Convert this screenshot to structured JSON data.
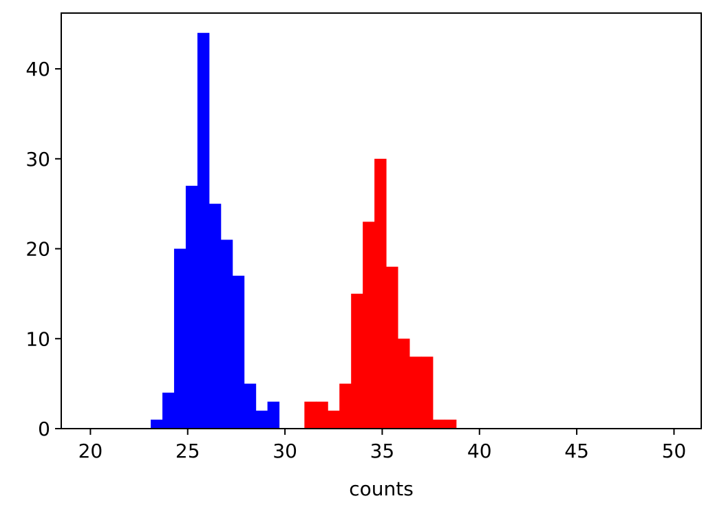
{
  "chart_data": {
    "type": "bar",
    "subtype": "histogram",
    "title": "",
    "xlabel": "counts",
    "ylabel": "",
    "xlim": [
      18.5,
      51.4
    ],
    "ylim": [
      0,
      46.2
    ],
    "xticks": [
      20,
      25,
      30,
      35,
      40,
      45,
      50
    ],
    "yticks": [
      0,
      10,
      20,
      30,
      40
    ],
    "grid": false,
    "legend": "none",
    "series": [
      {
        "color": "#0000ff",
        "bins": [
          {
            "x0": 23.1,
            "x1": 23.7,
            "value": 1
          },
          {
            "x0": 23.7,
            "x1": 24.3,
            "value": 4
          },
          {
            "x0": 24.3,
            "x1": 24.9,
            "value": 20
          },
          {
            "x0": 24.9,
            "x1": 25.5,
            "value": 27
          },
          {
            "x0": 25.5,
            "x1": 26.1,
            "value": 44
          },
          {
            "x0": 26.1,
            "x1": 26.7,
            "value": 25
          },
          {
            "x0": 26.7,
            "x1": 27.3,
            "value": 21
          },
          {
            "x0": 27.3,
            "x1": 27.9,
            "value": 17
          },
          {
            "x0": 27.9,
            "x1": 28.5,
            "value": 5
          },
          {
            "x0": 28.5,
            "x1": 29.1,
            "value": 2
          },
          {
            "x0": 29.1,
            "x1": 29.7,
            "value": 3
          }
        ]
      },
      {
        "color": "#ff0000",
        "bins": [
          {
            "x0": 31.0,
            "x1": 31.6,
            "value": 3
          },
          {
            "x0": 31.6,
            "x1": 32.2,
            "value": 3
          },
          {
            "x0": 32.2,
            "x1": 32.8,
            "value": 2
          },
          {
            "x0": 32.8,
            "x1": 33.4,
            "value": 5
          },
          {
            "x0": 33.4,
            "x1": 34.0,
            "value": 15
          },
          {
            "x0": 34.0,
            "x1": 34.6,
            "value": 23
          },
          {
            "x0": 34.6,
            "x1": 35.2,
            "value": 30
          },
          {
            "x0": 35.2,
            "x1": 35.8,
            "value": 18
          },
          {
            "x0": 35.8,
            "x1": 36.4,
            "value": 10
          },
          {
            "x0": 36.4,
            "x1": 37.0,
            "value": 8
          },
          {
            "x0": 37.0,
            "x1": 37.6,
            "value": 8
          },
          {
            "x0": 37.6,
            "x1": 38.2,
            "value": 1
          },
          {
            "x0": 38.2,
            "x1": 38.8,
            "value": 1
          }
        ]
      }
    ]
  }
}
